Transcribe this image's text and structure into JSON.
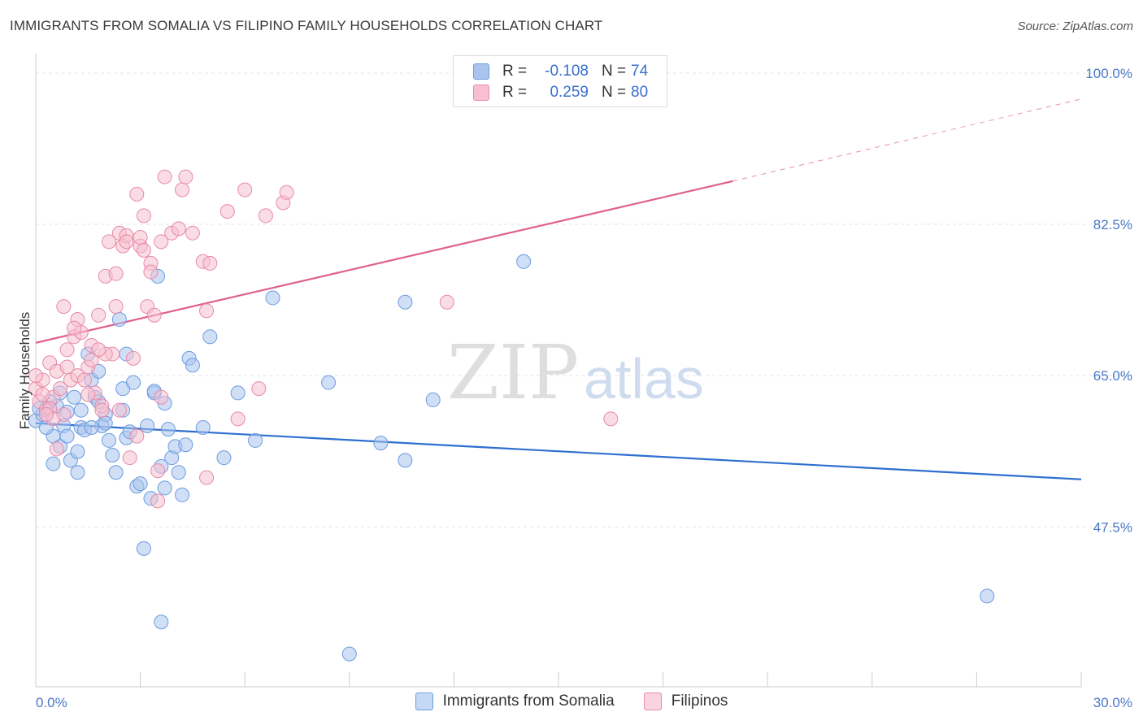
{
  "title": "IMMIGRANTS FROM SOMALIA VS FILIPINO FAMILY HOUSEHOLDS CORRELATION CHART",
  "source": "Source: ZipAtlas.com",
  "watermark": {
    "zip": "ZIP",
    "atlas": "atlas"
  },
  "legend": {
    "r_label": "R =",
    "n_label": "N =",
    "rows": [
      {
        "r": "-0.108",
        "n": "74",
        "color": "#a9c5ee",
        "border": "#6b9be0"
      },
      {
        "r": "0.259",
        "n": "80",
        "color": "#f6c0d0",
        "border": "#e88aa8"
      }
    ]
  },
  "bottom_legend": [
    "Immigrants from Somalia",
    "Filipinos"
  ],
  "chart_data": {
    "type": "scatter",
    "title": "IMMIGRANTS FROM SOMALIA VS FILIPINO FAMILY HOUSEHOLDS CORRELATION CHART",
    "xlabel": "",
    "ylabel": "Family Households",
    "xlim": [
      0,
      30
    ],
    "ylim": [
      29,
      101.5
    ],
    "x_tick_labels": [
      "0.0%",
      "30.0%"
    ],
    "y_ticks": [
      47.5,
      65.0,
      82.5,
      100.0
    ],
    "y_tick_labels": [
      "47.5%",
      "65.0%",
      "82.5%",
      "100.0%"
    ],
    "grid": true,
    "series": [
      {
        "name": "Immigrants from Somalia",
        "color": "#6b9be0",
        "fill": "#a9c5ee",
        "trend": {
          "x0": 0,
          "y0": 59.5,
          "x1": 30,
          "y1": 53.0,
          "color": "#2e6fcf"
        },
        "points": [
          [
            0.0,
            59.8
          ],
          [
            0.2,
            60.5
          ],
          [
            0.3,
            61.2
          ],
          [
            0.5,
            58.0
          ],
          [
            0.6,
            61.5
          ],
          [
            0.4,
            62.0
          ],
          [
            0.7,
            56.8
          ],
          [
            0.8,
            59.2
          ],
          [
            0.9,
            60.8
          ],
          [
            1.0,
            55.2
          ],
          [
            1.1,
            62.5
          ],
          [
            1.2,
            53.8
          ],
          [
            1.3,
            59.0
          ],
          [
            1.4,
            58.7
          ],
          [
            1.5,
            67.5
          ],
          [
            1.6,
            64.5
          ],
          [
            1.7,
            62.5
          ],
          [
            1.8,
            62.0
          ],
          [
            1.9,
            59.2
          ],
          [
            2.0,
            60.5
          ],
          [
            2.1,
            57.5
          ],
          [
            2.2,
            55.8
          ],
          [
            2.3,
            53.8
          ],
          [
            2.4,
            71.5
          ],
          [
            2.5,
            63.5
          ],
          [
            2.6,
            57.8
          ],
          [
            2.7,
            58.5
          ],
          [
            2.8,
            64.2
          ],
          [
            2.9,
            52.2
          ],
          [
            3.0,
            52.5
          ],
          [
            3.1,
            45.0
          ],
          [
            3.2,
            59.2
          ],
          [
            3.3,
            50.8
          ],
          [
            3.4,
            63.0
          ],
          [
            3.5,
            76.5
          ],
          [
            3.6,
            54.5
          ],
          [
            3.7,
            61.8
          ],
          [
            3.8,
            58.8
          ],
          [
            3.9,
            55.5
          ],
          [
            4.0,
            56.8
          ],
          [
            4.1,
            53.8
          ],
          [
            4.2,
            51.2
          ],
          [
            4.4,
            67.0
          ],
          [
            4.5,
            66.2
          ],
          [
            4.8,
            59.0
          ],
          [
            5.0,
            69.5
          ],
          [
            5.4,
            55.5
          ],
          [
            5.8,
            63.0
          ],
          [
            6.3,
            57.5
          ],
          [
            6.8,
            74.0
          ],
          [
            3.6,
            36.5
          ],
          [
            3.7,
            52.0
          ],
          [
            2.0,
            59.5
          ],
          [
            2.5,
            61.0
          ],
          [
            3.4,
            63.2
          ],
          [
            4.3,
            57.0
          ],
          [
            0.5,
            54.8
          ],
          [
            0.9,
            58.0
          ],
          [
            1.2,
            56.2
          ],
          [
            1.6,
            59.0
          ],
          [
            8.4,
            64.2
          ],
          [
            9.0,
            32.8
          ],
          [
            9.9,
            57.2
          ],
          [
            10.6,
            55.2
          ],
          [
            10.6,
            73.5
          ],
          [
            11.4,
            62.2
          ],
          [
            14.0,
            78.2
          ],
          [
            27.3,
            39.5
          ],
          [
            0.1,
            61.2
          ],
          [
            0.3,
            59.0
          ],
          [
            1.8,
            65.5
          ],
          [
            2.6,
            67.5
          ],
          [
            1.3,
            61.0
          ],
          [
            0.7,
            63.0
          ]
        ]
      },
      {
        "name": "Filipinos",
        "color": "#e88aa8",
        "fill": "#f6c0d0",
        "trend": {
          "x0": 0,
          "y0": 68.8,
          "x1": 20,
          "y1": 87.5,
          "dash_x1": 30,
          "dash_y1": 97.0,
          "color": "#e0608e"
        },
        "points": [
          [
            0.0,
            63.5
          ],
          [
            0.1,
            62.0
          ],
          [
            0.2,
            64.5
          ],
          [
            0.3,
            61.0
          ],
          [
            0.4,
            66.5
          ],
          [
            0.5,
            62.5
          ],
          [
            0.6,
            65.5
          ],
          [
            0.7,
            63.5
          ],
          [
            0.8,
            60.5
          ],
          [
            0.9,
            68.0
          ],
          [
            1.0,
            64.5
          ],
          [
            1.1,
            69.5
          ],
          [
            1.2,
            65.0
          ],
          [
            1.3,
            70.0
          ],
          [
            1.4,
            64.5
          ],
          [
            1.5,
            66.0
          ],
          [
            1.6,
            68.5
          ],
          [
            1.7,
            63.0
          ],
          [
            1.8,
            72.0
          ],
          [
            1.9,
            61.5
          ],
          [
            2.0,
            76.5
          ],
          [
            2.1,
            80.5
          ],
          [
            2.2,
            67.5
          ],
          [
            2.3,
            76.8
          ],
          [
            2.4,
            81.5
          ],
          [
            2.5,
            80.0
          ],
          [
            2.6,
            81.2
          ],
          [
            2.7,
            55.5
          ],
          [
            2.8,
            67.0
          ],
          [
            2.9,
            86.0
          ],
          [
            3.0,
            80.0
          ],
          [
            3.1,
            83.5
          ],
          [
            3.2,
            73.0
          ],
          [
            3.3,
            78.0
          ],
          [
            3.4,
            72.0
          ],
          [
            3.5,
            54.0
          ],
          [
            3.6,
            80.5
          ],
          [
            3.7,
            88.0
          ],
          [
            3.9,
            81.5
          ],
          [
            4.1,
            82.0
          ],
          [
            4.2,
            86.5
          ],
          [
            4.3,
            88.0
          ],
          [
            4.5,
            81.5
          ],
          [
            4.8,
            78.2
          ],
          [
            4.9,
            72.5
          ],
          [
            5.0,
            78.0
          ],
          [
            5.5,
            84.0
          ],
          [
            5.8,
            60.0
          ],
          [
            6.0,
            86.5
          ],
          [
            6.4,
            63.5
          ],
          [
            6.6,
            83.5
          ],
          [
            7.1,
            85.0
          ],
          [
            7.2,
            86.2
          ],
          [
            11.8,
            73.5
          ],
          [
            16.5,
            60.0
          ],
          [
            3.5,
            50.5
          ],
          [
            4.9,
            53.2
          ],
          [
            0.6,
            56.5
          ],
          [
            1.2,
            71.5
          ],
          [
            0.9,
            66.0
          ],
          [
            1.5,
            62.8
          ],
          [
            2.0,
            67.5
          ],
          [
            2.4,
            61.0
          ],
          [
            2.9,
            58.0
          ],
          [
            0.2,
            62.8
          ],
          [
            0.4,
            61.2
          ],
          [
            1.8,
            68.0
          ],
          [
            2.3,
            73.0
          ],
          [
            3.3,
            77.0
          ],
          [
            3.0,
            81.0
          ],
          [
            1.1,
            70.5
          ],
          [
            0.8,
            73.0
          ],
          [
            2.6,
            80.5
          ],
          [
            3.1,
            79.5
          ],
          [
            1.6,
            66.8
          ],
          [
            0.5,
            60.0
          ],
          [
            1.9,
            61.0
          ],
          [
            3.6,
            62.5
          ],
          [
            0.0,
            65.0
          ],
          [
            0.3,
            60.5
          ]
        ]
      }
    ]
  }
}
